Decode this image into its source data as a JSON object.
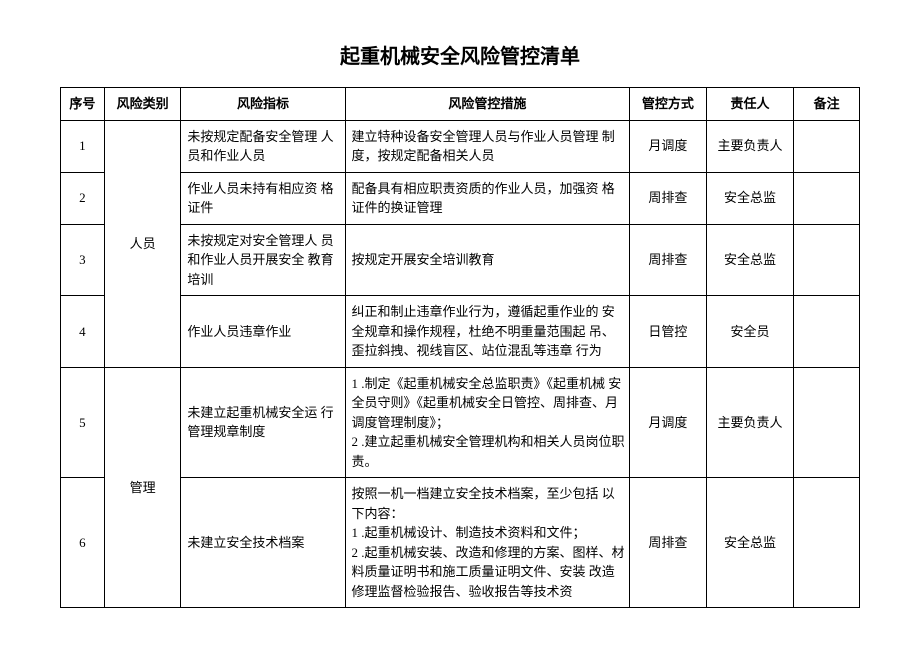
{
  "title": "起重机械安全风险管控清单",
  "columns": [
    "序号",
    "风险类别",
    "风险指标",
    "风险管控措施",
    "管控方式",
    "责任人",
    "备注"
  ],
  "categories": {
    "cat1": "人员",
    "cat2": "管理"
  },
  "rows": [
    {
      "no": "1",
      "indicator": "未按规定配备安全管理 人员和作业人员",
      "measure": "建立特种设备安全管理人员与作业人员管理 制度，按规定配备相关人员",
      "control": "月调度",
      "responsible": "主要负责人",
      "note": ""
    },
    {
      "no": "2",
      "indicator": "作业人员未持有相应资 格证件",
      "measure": "配备具有相应职责资质的作业人员，加强资 格证件的换证管理",
      "control": "周排查",
      "responsible": "安全总监",
      "note": ""
    },
    {
      "no": "3",
      "indicator": "未按规定对安全管理人 员和作业人员开展安全 教育培训",
      "measure": "按规定开展安全培训教育",
      "control": "周排查",
      "responsible": "安全总监",
      "note": ""
    },
    {
      "no": "4",
      "indicator": "作业人员违章作业",
      "measure": "纠正和制止违章作业行为，遵循起重作业的 安全规章和操作规程，杜绝不明重量范围起 吊、歪拉斜拽、视线盲区、站位混乱等违章 行为",
      "control": "日管控",
      "responsible": "安全员",
      "note": ""
    },
    {
      "no": "5",
      "indicator": "未建立起重机械安全运 行管理规章制度",
      "measure": "1    .制定《起重机械安全总监职责》《起重机械 安全员守则》《起重机械安全日管控、周排查、月调度管理制度》；\n2    .建立起重机械安全管理机构和相关人员岗位职责。",
      "control": "月调度",
      "responsible": "主要负责人",
      "note": ""
    },
    {
      "no": "6",
      "indicator": "未建立安全技术档案",
      "measure": "按照一机一档建立安全技术档案，至少包括 以下内容：\n1    .起重机械设计、制造技术资料和文件；\n2    .起重机械安装、改造和修理的方案、图样、材料质量证明书和施工质量证明文件、安装 改造修理监督检验报告、验收报告等技术资",
      "control": "周排查",
      "responsible": "安全总监",
      "note": ""
    }
  ]
}
